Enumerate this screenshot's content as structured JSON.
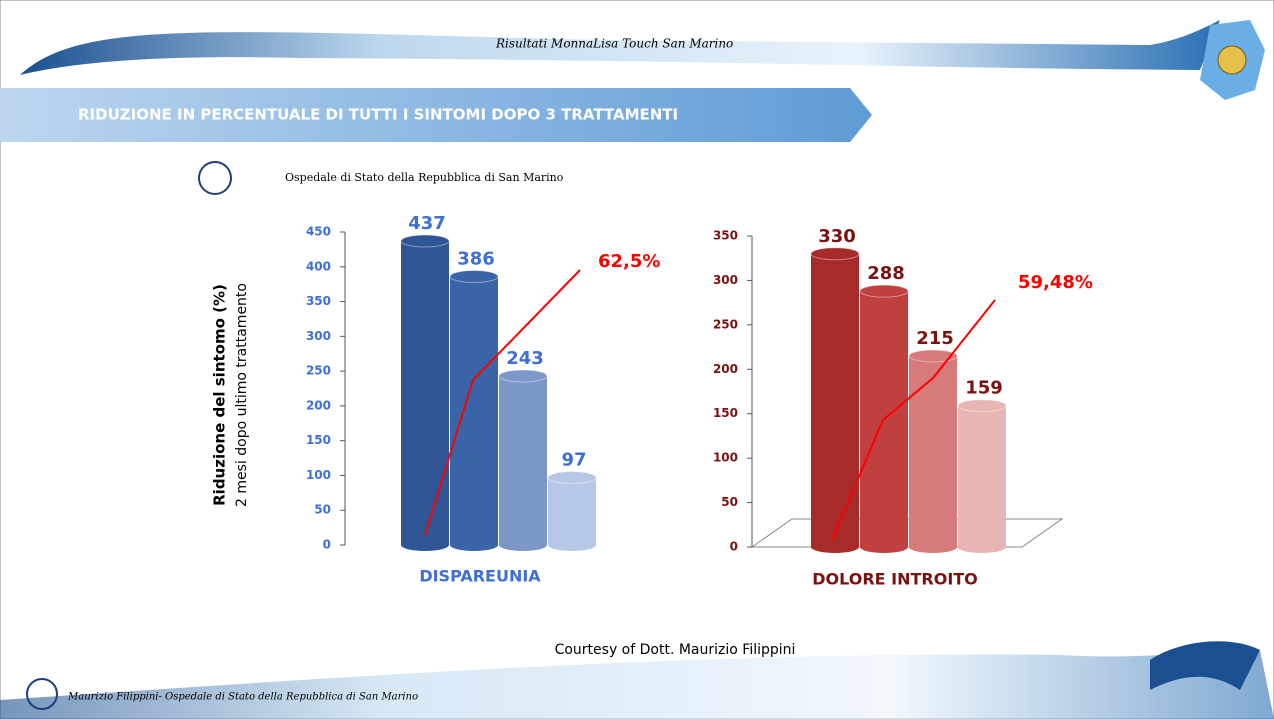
{
  "header": {
    "title": "Risultati MonnaLisa Touch San Marino",
    "banner": "RIDUZIONE IN PERCENTUALE DI TUTTI I SINTOMI DOPO 3 TRATTAMENTI",
    "hospital": "Ospedale di Stato della Repubblica di San Marino"
  },
  "chart_data": [
    {
      "type": "bar",
      "ylabel": "Riduzione del sintomo (%)",
      "ylabel_sub": "2 mesi dopo ultimo trattamento",
      "xlabel": "DISPAREUNIA",
      "categories": [
        null,
        null,
        null,
        null
      ],
      "values": [
        437,
        386,
        243,
        97
      ],
      "colors": [
        "#2f5594",
        "#3a64a8",
        "#7b98c8",
        "#b7c8e6"
      ],
      "label_color": "#3e6fd6",
      "tick_color": "#3e6fd6",
      "ylim": [
        0,
        450
      ],
      "yticks": [
        0,
        50,
        100,
        150,
        200,
        250,
        300,
        350,
        400,
        450
      ],
      "annotation": "62,5%",
      "floor": false
    },
    {
      "type": "bar",
      "xlabel": "DOLORE INTROITO",
      "categories": [
        null,
        null,
        null,
        null
      ],
      "values": [
        330,
        288,
        215,
        159
      ],
      "colors": [
        "#a72b2b",
        "#c03f3f",
        "#d77a7a",
        "#e8b5b5"
      ],
      "label_color": "#7a1212",
      "tick_color": "#7a1212",
      "ylim": [
        0,
        350
      ],
      "yticks": [
        0,
        50,
        100,
        150,
        200,
        250,
        300,
        350
      ],
      "annotation": "59,48%",
      "floor": true
    }
  ],
  "footer": {
    "courtesy": "Courtesy of Dott. Maurizio Filippini",
    "author": "Maurizio Filippini- Ospedale di Stato della Repubblica di San Marino"
  }
}
